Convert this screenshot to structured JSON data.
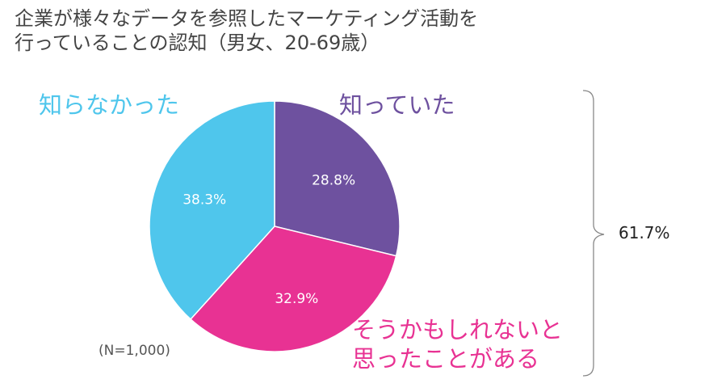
{
  "chart_data": {
    "type": "pie",
    "title_lines": [
      "企業が様々なデータを参照したマーケティング活動を",
      "行っていることの認知（男女、20-69歳）"
    ],
    "slices": [
      {
        "label": "知っていた",
        "value": 28.8,
        "value_label": "28.8%",
        "color": "#6e519f"
      },
      {
        "label": "そうかもしれないと思ったことがある",
        "label_lines": [
          "そうかもしれないと",
          "思ったことがある"
        ],
        "value": 32.9,
        "value_label": "32.9%",
        "color": "#e83293"
      },
      {
        "label": "知らなかった",
        "value": 38.3,
        "value_label": "38.3%",
        "color": "#4fc6ec"
      }
    ],
    "start_angle": "12 o'clock",
    "direction": "clockwise",
    "annotation": {
      "bracket_total": "61.7%",
      "spans": [
        "知っていた",
        "そうかもしれないと思ったことがある"
      ]
    },
    "note": "(N=1,000)"
  }
}
